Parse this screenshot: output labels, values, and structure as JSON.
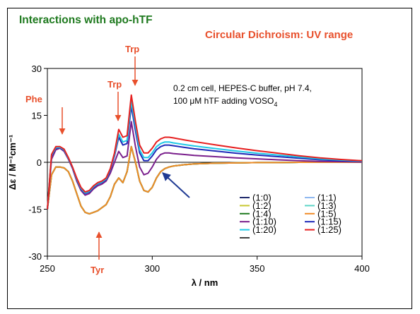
{
  "slide": {
    "title": "Interactions with apo-hTF",
    "subtitle": "Circular Dichroism: UV range",
    "note_line1": "0.2 cm cell, HEPES-C buffer, pH 7.4,",
    "note_line2": "100 μM hTF adding VOSO",
    "note_sub": "4",
    "band_labels": {
      "phe": "Phe",
      "trp1": "Trp",
      "trp2": "Trp",
      "tyr": "Tyr"
    },
    "annotation_color": "#e8502c",
    "arrow_color": "#1f3a93"
  },
  "chart_data": {
    "type": "line",
    "xlabel": "λ / nm",
    "ylabel": "Δε / M⁻¹cm⁻¹",
    "xlim": [
      250,
      400
    ],
    "ylim": [
      -30,
      30
    ],
    "xticks": [
      250,
      300,
      350,
      400
    ],
    "yticks": [
      30,
      15,
      0,
      -15,
      -30
    ],
    "ytick_labels": [
      "30",
      "15",
      "0",
      "-15",
      "-30"
    ],
    "grid": false,
    "legend_position": "bottom-right",
    "x": [
      250,
      252,
      254,
      256,
      258,
      260,
      262,
      264,
      266,
      268,
      270,
      272,
      274,
      276,
      278,
      280,
      282,
      284,
      286,
      288,
      290,
      292,
      294,
      296,
      298,
      300,
      302,
      304,
      306,
      308,
      310,
      315,
      320,
      330,
      340,
      350,
      360,
      370,
      380,
      390,
      400
    ],
    "series": [
      {
        "name": "(1:0)",
        "color": "#1f2a6b",
        "values": [
          -15,
          -4,
          -1.5,
          -1.5,
          -1.8,
          -3,
          -6,
          -10,
          -14,
          -16,
          -16.5,
          -16,
          -15.5,
          -14.5,
          -13.5,
          -11,
          -7,
          -5,
          -6.5,
          -3,
          5,
          0,
          -6,
          -9,
          -9.5,
          -8,
          -5,
          -3,
          -2,
          -1.5,
          -1.2,
          -0.8,
          -0.5,
          -0.3,
          -0.2,
          -0.1,
          -0.1,
          0,
          0,
          0,
          0
        ]
      },
      {
        "name": "(1:1)",
        "color": "#8fb8f0",
        "values": [
          -15,
          -4,
          -1.5,
          -1.5,
          -1.8,
          -3,
          -6,
          -10,
          -14,
          -16,
          -16.5,
          -16,
          -15.5,
          -14.5,
          -13.5,
          -11,
          -7,
          -5,
          -6.5,
          -3,
          5,
          0,
          -6,
          -9,
          -9.5,
          -8,
          -5,
          -3,
          -2,
          -1.5,
          -1.2,
          -0.8,
          -0.5,
          -0.3,
          -0.2,
          -0.1,
          -0.1,
          0,
          0,
          0,
          0
        ]
      },
      {
        "name": "(1:2)",
        "color": "#c8c832",
        "values": [
          -15,
          -4,
          -1.5,
          -1.5,
          -1.8,
          -3,
          -6,
          -10,
          -14,
          -16,
          -16.5,
          -16,
          -15.5,
          -14.5,
          -13.5,
          -11,
          -7,
          -5,
          -6.5,
          -3,
          5,
          0,
          -6,
          -9,
          -9.5,
          -8,
          -5,
          -3,
          -2,
          -1.5,
          -1.2,
          -0.8,
          -0.5,
          -0.3,
          -0.2,
          -0.1,
          -0.1,
          0,
          0,
          0,
          0
        ]
      },
      {
        "name": "(1:3)",
        "color": "#5fd6c8",
        "values": [
          -15,
          -4,
          -1.5,
          -1.5,
          -1.8,
          -3,
          -6,
          -10,
          -14,
          -16,
          -16.5,
          -16,
          -15.5,
          -14.5,
          -13.5,
          -11,
          -7,
          -5,
          -6.5,
          -3,
          5,
          0,
          -6,
          -9,
          -9.5,
          -8,
          -5,
          -3,
          -2,
          -1.5,
          -1.2,
          -0.8,
          -0.5,
          -0.3,
          -0.2,
          -0.1,
          -0.1,
          0,
          0,
          0,
          0
        ]
      },
      {
        "name": "(1:4)",
        "color": "#1f7a1f",
        "values": [
          -15,
          -4,
          -1.5,
          -1.5,
          -1.8,
          -3,
          -6,
          -10,
          -14,
          -16,
          -16.5,
          -16,
          -15.5,
          -14.5,
          -13.5,
          -11,
          -7,
          -5,
          -6.5,
          -3,
          5,
          0,
          -6,
          -9,
          -9.5,
          -8,
          -5,
          -3,
          -2,
          -1.5,
          -1.2,
          -0.8,
          -0.5,
          -0.3,
          -0.2,
          -0.1,
          -0.1,
          0,
          0,
          0,
          0
        ]
      },
      {
        "name": "(1:5)",
        "color": "#f08c28",
        "values": [
          -15,
          -4,
          -1.5,
          -1.5,
          -1.8,
          -3,
          -6,
          -10,
          -14,
          -16,
          -16.5,
          -16,
          -15.5,
          -14.5,
          -13.5,
          -11,
          -7,
          -5,
          -6.5,
          -3,
          5,
          0,
          -6,
          -9,
          -9.5,
          -8,
          -5,
          -3,
          -2,
          -1.5,
          -1.2,
          -0.8,
          -0.5,
          -0.3,
          -0.2,
          -0.1,
          -0.1,
          0,
          0,
          0,
          0
        ]
      },
      {
        "name": "(1:10)",
        "color": "#7a1f8c",
        "values": [
          -15,
          1,
          4,
          4.5,
          3.5,
          1,
          -2,
          -6,
          -9,
          -10.5,
          -10,
          -8.5,
          -7.5,
          -7,
          -6,
          -3.5,
          0,
          3.5,
          1.5,
          2,
          13,
          5,
          -1.5,
          -4,
          -3.5,
          -1.5,
          1,
          2.5,
          3,
          3,
          2.8,
          2.5,
          2.2,
          1.8,
          1.4,
          1.1,
          0.8,
          0.5,
          0.3,
          0.2,
          0.1
        ]
      },
      {
        "name": "(1:15)",
        "color": "#1f2ab8",
        "values": [
          -15,
          2,
          4.5,
          4.7,
          3.8,
          1.2,
          -1.8,
          -5.5,
          -8.5,
          -10,
          -9.5,
          -8,
          -7,
          -6.5,
          -5.5,
          -2.5,
          2,
          8,
          5.5,
          6,
          18,
          10,
          3,
          0.5,
          0.5,
          2,
          4,
          5,
          5.5,
          5.5,
          5.3,
          4.8,
          4.3,
          3.6,
          2.9,
          2.3,
          1.8,
          1.3,
          0.8,
          0.5,
          0.3
        ]
      },
      {
        "name": "(1:20)",
        "color": "#1fc8e6",
        "values": [
          -15,
          2.2,
          4.7,
          4.8,
          4,
          1.3,
          -1.6,
          -5.3,
          -8.3,
          -9.8,
          -9.3,
          -7.8,
          -6.8,
          -6.3,
          -5.3,
          -2.2,
          2.5,
          9,
          6.5,
          7,
          19.5,
          11.5,
          4,
          1.5,
          1.5,
          3,
          5,
          6,
          6.5,
          6.5,
          6.2,
          5.7,
          5.2,
          4.4,
          3.6,
          2.9,
          2.3,
          1.7,
          1.1,
          0.7,
          0.4
        ]
      },
      {
        "name": "(1:25)",
        "color": "#e61f1f",
        "values": [
          -15,
          2.5,
          5,
          5,
          4.2,
          1.5,
          -1.5,
          -5,
          -8,
          -9.5,
          -9,
          -7.5,
          -6.5,
          -6,
          -5,
          -2,
          3,
          10.5,
          8,
          8.5,
          21.5,
          13,
          5.5,
          3,
          3,
          4.5,
          6.5,
          7.5,
          8,
          8,
          7.8,
          7.2,
          6.6,
          5.6,
          4.6,
          3.7,
          2.9,
          2.1,
          1.4,
          0.9,
          0.5
        ]
      }
    ]
  }
}
